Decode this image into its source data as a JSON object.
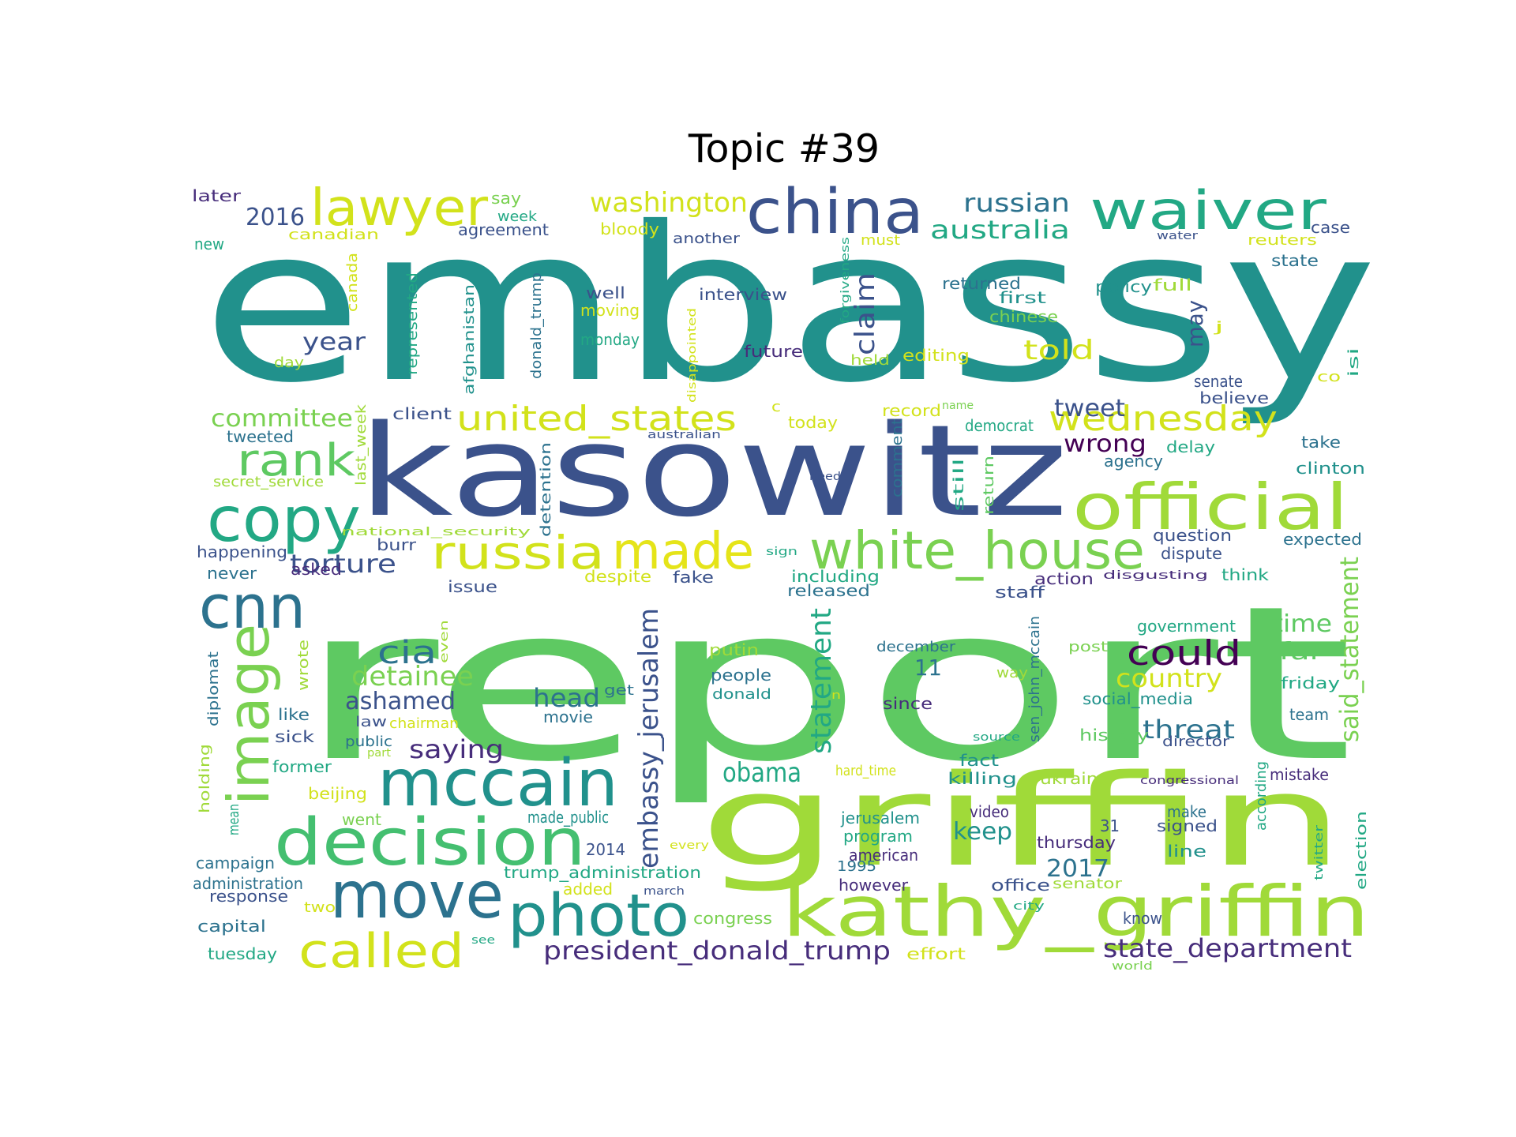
{
  "title": "Topic #39",
  "words": [
    {
      "t": "embassy",
      "c": "#21918c"
    },
    {
      "t": "report",
      "c": "#5ec962"
    },
    {
      "t": "kasowitz",
      "c": "#3b528b"
    },
    {
      "t": "griffin",
      "c": "#a0da39"
    },
    {
      "t": "kathy_griffin",
      "c": "#a0da39"
    },
    {
      "t": "official",
      "c": "#a0da39"
    },
    {
      "t": "white_house",
      "c": "#7ad151"
    },
    {
      "t": "waiver",
      "c": "#22a884"
    },
    {
      "t": "china",
      "c": "#3b528b"
    },
    {
      "t": "lawyer",
      "c": "#d2e21b"
    },
    {
      "t": "copy",
      "c": "#22a884"
    },
    {
      "t": "image",
      "c": "#7ad151"
    },
    {
      "t": "cnn",
      "c": "#2c728e"
    },
    {
      "t": "mccain",
      "c": "#21918c"
    },
    {
      "t": "decision",
      "c": "#44bf70"
    },
    {
      "t": "move",
      "c": "#2c728e"
    },
    {
      "t": "photo",
      "c": "#21918c"
    },
    {
      "t": "called",
      "c": "#d2e21b"
    },
    {
      "t": "russia",
      "c": "#d2e21b"
    },
    {
      "t": "made",
      "c": "#e5e419"
    },
    {
      "t": "rank",
      "c": "#5ec962"
    },
    {
      "t": "united_states",
      "c": "#d2e21b"
    },
    {
      "t": "wednesday",
      "c": "#d2e21b"
    },
    {
      "t": "embassy_jerusalem",
      "c": "#3b528b"
    },
    {
      "t": "president_donald_trump",
      "c": "#472d7b"
    },
    {
      "t": "state_department",
      "c": "#472d7b"
    },
    {
      "t": "said_statement",
      "c": "#7ad151"
    },
    {
      "t": "statement",
      "c": "#22a884"
    },
    {
      "t": "could",
      "c": "#440154"
    },
    {
      "t": "country",
      "c": "#d2e21b"
    },
    {
      "t": "obama",
      "c": "#22a884"
    },
    {
      "t": "washington",
      "c": "#d2e21b"
    },
    {
      "t": "russian",
      "c": "#2c728e"
    },
    {
      "t": "australia",
      "c": "#22a884"
    },
    {
      "t": "cia",
      "c": "#2c728e"
    },
    {
      "t": "detainee",
      "c": "#7ad151"
    },
    {
      "t": "ashamed",
      "c": "#3b528b"
    },
    {
      "t": "head",
      "c": "#2c728e"
    },
    {
      "t": "saying",
      "c": "#472d7b"
    },
    {
      "t": "threat",
      "c": "#2c728e"
    },
    {
      "t": "torture",
      "c": "#3b528b"
    },
    {
      "t": "committee",
      "c": "#7ad151"
    },
    {
      "t": "tweet",
      "c": "#3b528b"
    },
    {
      "t": "wrong",
      "c": "#440154"
    },
    {
      "t": "claim",
      "c": "#3b528b"
    },
    {
      "t": "told",
      "c": "#d2e21b"
    },
    {
      "t": "year",
      "c": "#3b528b"
    },
    {
      "t": "2016",
      "c": "#3b528b"
    },
    {
      "t": "2017",
      "c": "#2c728e"
    },
    {
      "t": "time",
      "c": "#5ec962"
    },
    {
      "t": "far",
      "c": "#5ec962"
    },
    {
      "t": "keep",
      "c": "#21918c"
    },
    {
      "t": "11",
      "c": "#2c728e"
    },
    {
      "t": "may",
      "c": "#3b528b"
    },
    {
      "t": "later",
      "c": "#472d7b"
    },
    {
      "t": "say",
      "c": "#7ad151"
    },
    {
      "t": "week",
      "c": "#22a884"
    },
    {
      "t": "agreement",
      "c": "#3b528b"
    },
    {
      "t": "canadian",
      "c": "#d2e21b"
    },
    {
      "t": "new",
      "c": "#22a884"
    },
    {
      "t": "bloody",
      "c": "#d2e21b"
    },
    {
      "t": "another",
      "c": "#3b528b"
    },
    {
      "t": "must",
      "c": "#d2e21b"
    },
    {
      "t": "case",
      "c": "#3b528b"
    },
    {
      "t": "water",
      "c": "#3b528b"
    },
    {
      "t": "reuters",
      "c": "#d2e21b"
    },
    {
      "t": "state",
      "c": "#2c728e"
    },
    {
      "t": "policy",
      "c": "#21918c"
    },
    {
      "t": "full",
      "c": "#a0da39"
    },
    {
      "t": "returned",
      "c": "#2c728e"
    },
    {
      "t": "first",
      "c": "#21918c"
    },
    {
      "t": "chinese",
      "c": "#7ad151"
    },
    {
      "t": "interview",
      "c": "#3b528b"
    },
    {
      "t": "well",
      "c": "#3b528b"
    },
    {
      "t": "moving",
      "c": "#d2e21b"
    },
    {
      "t": "monday",
      "c": "#22a884"
    },
    {
      "t": "future",
      "c": "#472d7b"
    },
    {
      "t": "held",
      "c": "#a0da39"
    },
    {
      "t": "editing",
      "c": "#d2e21b"
    },
    {
      "t": "canada",
      "c": "#d2e21b"
    },
    {
      "t": "represented",
      "c": "#22a884"
    },
    {
      "t": "afghanistan",
      "c": "#21918c"
    },
    {
      "t": "donald_trump",
      "c": "#2c728e"
    },
    {
      "t": "disappointed",
      "c": "#d2e21b"
    },
    {
      "t": "forgiveness",
      "c": "#22a884"
    },
    {
      "t": "day",
      "c": "#a0da39"
    },
    {
      "t": "j",
      "c": "#d2e21b"
    },
    {
      "t": "co",
      "c": "#d2e21b"
    },
    {
      "t": "isi",
      "c": "#22a884"
    },
    {
      "t": "senate",
      "c": "#3b528b"
    },
    {
      "t": "believe",
      "c": "#3b528b"
    },
    {
      "t": "client",
      "c": "#3b528b"
    },
    {
      "t": "tweeted",
      "c": "#2c728e"
    },
    {
      "t": "last_week",
      "c": "#a0da39"
    },
    {
      "t": "secret_service",
      "c": "#a0da39"
    },
    {
      "t": "australian",
      "c": "#3b528b"
    },
    {
      "t": "c",
      "c": "#d2e21b"
    },
    {
      "t": "today",
      "c": "#d2e21b"
    },
    {
      "t": "record",
      "c": "#d2e21b"
    },
    {
      "t": "name",
      "c": "#7ad151"
    },
    {
      "t": "democrat",
      "c": "#22a884"
    },
    {
      "t": "agency",
      "c": "#2c728e"
    },
    {
      "t": "delay",
      "c": "#22a884"
    },
    {
      "t": "take",
      "c": "#2c728e"
    },
    {
      "t": "clinton",
      "c": "#21918c"
    },
    {
      "t": "need",
      "c": "#3b528b"
    },
    {
      "t": "comment",
      "c": "#2c728e"
    },
    {
      "t": "still",
      "c": "#22a884"
    },
    {
      "t": "return",
      "c": "#5ec962"
    },
    {
      "t": "detention",
      "c": "#2c728e"
    },
    {
      "t": "national_security",
      "c": "#a0da39"
    },
    {
      "t": "burr",
      "c": "#3b528b"
    },
    {
      "t": "happening",
      "c": "#3b528b"
    },
    {
      "t": "never",
      "c": "#2c728e"
    },
    {
      "t": "asked",
      "c": "#472d7b"
    },
    {
      "t": "question",
      "c": "#3b528b"
    },
    {
      "t": "dispute",
      "c": "#3b528b"
    },
    {
      "t": "expected",
      "c": "#2c728e"
    },
    {
      "t": "sign",
      "c": "#22a884"
    },
    {
      "t": "fake",
      "c": "#3b528b"
    },
    {
      "t": "despite",
      "c": "#d2e21b"
    },
    {
      "t": "including",
      "c": "#22a884"
    },
    {
      "t": "released",
      "c": "#2c728e"
    },
    {
      "t": "action",
      "c": "#472d7b"
    },
    {
      "t": "disgusting",
      "c": "#472d7b"
    },
    {
      "t": "think",
      "c": "#22a884"
    },
    {
      "t": "staff",
      "c": "#3b528b"
    },
    {
      "t": "issue",
      "c": "#3b528b"
    },
    {
      "t": "even",
      "c": "#a0da39"
    },
    {
      "t": "government",
      "c": "#22a884"
    },
    {
      "t": "putin",
      "c": "#a0da39"
    },
    {
      "t": "december",
      "c": "#2c728e"
    },
    {
      "t": "post",
      "c": "#7ad151"
    },
    {
      "t": "way",
      "c": "#a0da39"
    },
    {
      "t": "people",
      "c": "#2c728e"
    },
    {
      "t": "donald",
      "c": "#21918c"
    },
    {
      "t": "get",
      "c": "#2c728e"
    },
    {
      "t": "movie",
      "c": "#2c728e"
    },
    {
      "t": "n",
      "c": "#d2e21b"
    },
    {
      "t": "since",
      "c": "#472d7b"
    },
    {
      "t": "social_media",
      "c": "#21918c"
    },
    {
      "t": "friday",
      "c": "#22a884"
    },
    {
      "t": "team",
      "c": "#2c728e"
    },
    {
      "t": "sen_john_mccain",
      "c": "#2c728e"
    },
    {
      "t": "source",
      "c": "#22a884"
    },
    {
      "t": "history",
      "c": "#5ec962"
    },
    {
      "t": "director",
      "c": "#3b528b"
    },
    {
      "t": "diplomat",
      "c": "#2c728e"
    },
    {
      "t": "wrote",
      "c": "#a0da39"
    },
    {
      "t": "like",
      "c": "#2c728e"
    },
    {
      "t": "sick",
      "c": "#3b528b"
    },
    {
      "t": "law",
      "c": "#3b528b"
    },
    {
      "t": "chairman",
      "c": "#d2e21b"
    },
    {
      "t": "public",
      "c": "#2c728e"
    },
    {
      "t": "part",
      "c": "#a0da39"
    },
    {
      "t": "former",
      "c": "#22a884"
    },
    {
      "t": "hard_time",
      "c": "#d2e21b"
    },
    {
      "t": "fact",
      "c": "#21918c"
    },
    {
      "t": "killing",
      "c": "#21918c"
    },
    {
      "t": "ukraine",
      "c": "#a0da39"
    },
    {
      "t": "congressional",
      "c": "#472d7b"
    },
    {
      "t": "mistake",
      "c": "#472d7b"
    },
    {
      "t": "holding",
      "c": "#a0da39"
    },
    {
      "t": "beijing",
      "c": "#d2e21b"
    },
    {
      "t": "went",
      "c": "#7ad151"
    },
    {
      "t": "mean",
      "c": "#22a884"
    },
    {
      "t": "made_public",
      "c": "#21918c"
    },
    {
      "t": "jerusalem",
      "c": "#21918c"
    },
    {
      "t": "video",
      "c": "#472d7b"
    },
    {
      "t": "31",
      "c": "#3b528b"
    },
    {
      "t": "make",
      "c": "#2c728e"
    },
    {
      "t": "signed",
      "c": "#3b528b"
    },
    {
      "t": "according",
      "c": "#22a884"
    },
    {
      "t": "twitter",
      "c": "#22a884"
    },
    {
      "t": "election",
      "c": "#22a884"
    },
    {
      "t": "2014",
      "c": "#3b528b"
    },
    {
      "t": "every",
      "c": "#d2e21b"
    },
    {
      "t": "program",
      "c": "#22a884"
    },
    {
      "t": "thursday",
      "c": "#472d7b"
    },
    {
      "t": "american",
      "c": "#472d7b"
    },
    {
      "t": "campaign",
      "c": "#2c728e"
    },
    {
      "t": "trump_administration",
      "c": "#22a884"
    },
    {
      "t": "line",
      "c": "#21918c"
    },
    {
      "t": "1995",
      "c": "#2c728e"
    },
    {
      "t": "administration",
      "c": "#2c728e"
    },
    {
      "t": "added",
      "c": "#d2e21b"
    },
    {
      "t": "march",
      "c": "#3b528b"
    },
    {
      "t": "however",
      "c": "#472d7b"
    },
    {
      "t": "office",
      "c": "#3b528b"
    },
    {
      "t": "senator",
      "c": "#a0da39"
    },
    {
      "t": "response",
      "c": "#3b528b"
    },
    {
      "t": "two",
      "c": "#d2e21b"
    },
    {
      "t": "city",
      "c": "#22a884"
    },
    {
      "t": "know",
      "c": "#3b528b"
    },
    {
      "t": "congress",
      "c": "#7ad151"
    },
    {
      "t": "capital",
      "c": "#2c728e"
    },
    {
      "t": "tuesday",
      "c": "#22a884"
    },
    {
      "t": "see",
      "c": "#22a884"
    },
    {
      "t": "effort",
      "c": "#d2e21b"
    },
    {
      "t": "world",
      "c": "#7ad151"
    }
  ]
}
